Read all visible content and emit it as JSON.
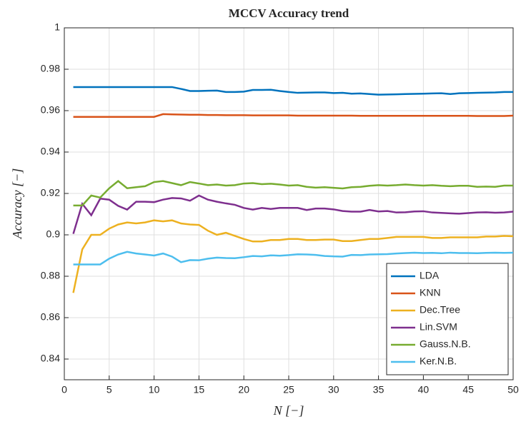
{
  "chart_data": {
    "type": "line",
    "title": "MCCV Accuracy trend",
    "xlabel": "N [−]",
    "ylabel": "Accuracy [−]",
    "x": [
      1,
      2,
      3,
      4,
      5,
      6,
      7,
      8,
      9,
      10,
      11,
      12,
      13,
      14,
      15,
      16,
      17,
      18,
      19,
      20,
      21,
      22,
      23,
      24,
      25,
      26,
      27,
      28,
      29,
      30,
      31,
      32,
      33,
      34,
      35,
      36,
      37,
      38,
      39,
      40,
      41,
      42,
      43,
      44,
      45,
      46,
      47,
      48,
      49,
      50
    ],
    "series": [
      {
        "name": "LDA",
        "color": "#0072BD",
        "values": [
          0.9714,
          0.9714,
          0.9714,
          0.9714,
          0.9714,
          0.9714,
          0.9714,
          0.9714,
          0.9714,
          0.9714,
          0.9714,
          0.9714,
          0.9705,
          0.9695,
          0.9695,
          0.9696,
          0.9697,
          0.969,
          0.969,
          0.9692,
          0.97,
          0.97,
          0.9701,
          0.9695,
          0.969,
          0.9686,
          0.9687,
          0.9688,
          0.9688,
          0.9685,
          0.9686,
          0.9682,
          0.9683,
          0.968,
          0.9677,
          0.9678,
          0.9679,
          0.968,
          0.9681,
          0.9682,
          0.9683,
          0.9684,
          0.968,
          0.9684,
          0.9685,
          0.9686,
          0.9687,
          0.9688,
          0.969,
          0.969
        ]
      },
      {
        "name": "KNN",
        "color": "#D95319",
        "values": [
          0.957,
          0.957,
          0.957,
          0.957,
          0.957,
          0.957,
          0.957,
          0.957,
          0.957,
          0.957,
          0.9583,
          0.9582,
          0.9581,
          0.958,
          0.958,
          0.9579,
          0.9579,
          0.9578,
          0.9578,
          0.9578,
          0.9577,
          0.9577,
          0.9577,
          0.9577,
          0.9577,
          0.9576,
          0.9576,
          0.9576,
          0.9576,
          0.9576,
          0.9576,
          0.9576,
          0.9575,
          0.9575,
          0.9575,
          0.9575,
          0.9575,
          0.9575,
          0.9575,
          0.9575,
          0.9575,
          0.9575,
          0.9575,
          0.9575,
          0.9575,
          0.9574,
          0.9574,
          0.9574,
          0.9574,
          0.9576
        ]
      },
      {
        "name": "Dec.Tree",
        "color": "#EDB120",
        "values": [
          0.872,
          0.893,
          0.9,
          0.9,
          0.903,
          0.905,
          0.906,
          0.9055,
          0.906,
          0.907,
          0.9065,
          0.907,
          0.9055,
          0.905,
          0.9048,
          0.902,
          0.9,
          0.901,
          0.8995,
          0.898,
          0.8968,
          0.8968,
          0.8975,
          0.8975,
          0.898,
          0.898,
          0.8975,
          0.8975,
          0.8977,
          0.8977,
          0.897,
          0.897,
          0.8975,
          0.898,
          0.898,
          0.8985,
          0.899,
          0.899,
          0.899,
          0.899,
          0.8985,
          0.8985,
          0.8988,
          0.8988,
          0.8988,
          0.8988,
          0.8992,
          0.8992,
          0.8995,
          0.8993
        ]
      },
      {
        "name": "Lin.SVM",
        "color": "#7E2F8E",
        "values": [
          0.9005,
          0.915,
          0.9095,
          0.9175,
          0.917,
          0.914,
          0.9122,
          0.916,
          0.916,
          0.9158,
          0.917,
          0.9178,
          0.9176,
          0.9165,
          0.919,
          0.917,
          0.916,
          0.9152,
          0.9145,
          0.913,
          0.9122,
          0.913,
          0.9125,
          0.913,
          0.913,
          0.913,
          0.912,
          0.9127,
          0.9127,
          0.9123,
          0.9115,
          0.9112,
          0.9112,
          0.912,
          0.9113,
          0.9115,
          0.9108,
          0.9109,
          0.9113,
          0.9114,
          0.9108,
          0.9106,
          0.9104,
          0.9102,
          0.9105,
          0.9108,
          0.9109,
          0.9107,
          0.9108,
          0.9112
        ]
      },
      {
        "name": "Gauss.N.B.",
        "color": "#77AC30",
        "values": [
          0.9142,
          0.9142,
          0.919,
          0.918,
          0.9225,
          0.926,
          0.9225,
          0.923,
          0.9235,
          0.9255,
          0.926,
          0.925,
          0.924,
          0.9255,
          0.9248,
          0.924,
          0.9243,
          0.9238,
          0.924,
          0.9248,
          0.925,
          0.9245,
          0.9247,
          0.9243,
          0.9238,
          0.924,
          0.9232,
          0.9228,
          0.923,
          0.9227,
          0.9224,
          0.923,
          0.9232,
          0.9237,
          0.924,
          0.9238,
          0.924,
          0.9243,
          0.924,
          0.9238,
          0.924,
          0.9237,
          0.9235,
          0.9237,
          0.9237,
          0.9232,
          0.9233,
          0.9232,
          0.9238,
          0.9238
        ]
      },
      {
        "name": "Ker.N.B.",
        "color": "#4DBEEE",
        "values": [
          0.8857,
          0.8857,
          0.8857,
          0.8857,
          0.8885,
          0.8905,
          0.8918,
          0.891,
          0.8905,
          0.89,
          0.891,
          0.8895,
          0.8868,
          0.8878,
          0.8877,
          0.8885,
          0.889,
          0.8888,
          0.8887,
          0.8892,
          0.8898,
          0.8896,
          0.8901,
          0.8899,
          0.8902,
          0.8906,
          0.8905,
          0.8903,
          0.8898,
          0.8896,
          0.8895,
          0.8903,
          0.8902,
          0.8905,
          0.8906,
          0.8907,
          0.891,
          0.8912,
          0.8914,
          0.8912,
          0.8913,
          0.8911,
          0.8914,
          0.8912,
          0.8912,
          0.8911,
          0.8913,
          0.8914,
          0.8913,
          0.8914
        ]
      }
    ],
    "xlim": [
      0,
      50
    ],
    "xticks": [
      0,
      5,
      10,
      15,
      20,
      25,
      30,
      35,
      40,
      45,
      50
    ],
    "ylim": [
      0.83,
      1
    ],
    "yticks": [
      0.84,
      0.86,
      0.88,
      0.9,
      0.92,
      0.94,
      0.96,
      0.98,
      1
    ],
    "grid": true,
    "legend": "lower right"
  }
}
